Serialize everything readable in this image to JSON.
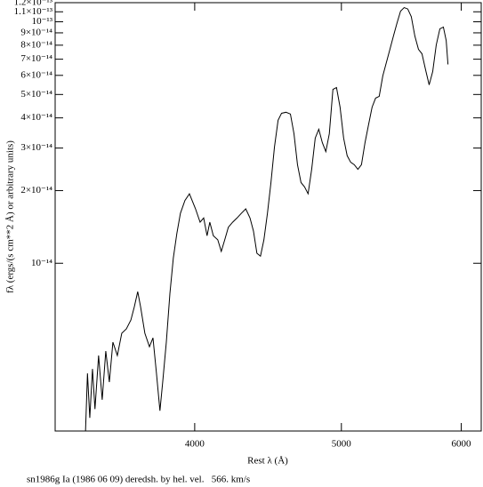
{
  "chart_data": {
    "type": "line",
    "x_label": "Rest λ (Å)",
    "y_label": "fλ (ergs/(s cm**2 Å) or arbitrary units)",
    "caption": "sn1986g Ia (1986 06 09) deredsh. by hel. vel.   566. km/s",
    "log_x": true,
    "log_y": true,
    "color": "#000000",
    "xlim": [
      3235,
      6185
    ],
    "xticks": [
      4000,
      5000,
      6000
    ],
    "ylim": [
      2.02e-15,
      1.2e-13
    ],
    "yticks": [
      {
        "value": 1e-14,
        "label": "10⁻¹⁴"
      },
      {
        "value": 2e-14,
        "label": "2×10⁻¹⁴"
      },
      {
        "value": 3e-14,
        "label": "3×10⁻¹⁴"
      },
      {
        "value": 4e-14,
        "label": "4×10⁻¹⁴"
      },
      {
        "value": 5e-14,
        "label": "5×10⁻¹⁴"
      },
      {
        "value": 6e-14,
        "label": "6×10⁻¹⁴"
      },
      {
        "value": 7e-14,
        "label": "7×10⁻¹⁴"
      },
      {
        "value": 8e-14,
        "label": "8×10⁻¹⁴"
      },
      {
        "value": 9e-14,
        "label": "9×10⁻¹⁴"
      },
      {
        "value": 1e-13,
        "label": "10⁻¹³"
      },
      {
        "value": 1.1e-13,
        "label": "1.1×10⁻¹³"
      },
      {
        "value": 1.2e-13,
        "label": "1.2×10⁻¹³"
      }
    ],
    "x": [
      3388,
      3398,
      3410,
      3424,
      3437,
      3456,
      3475,
      3494,
      3513,
      3532,
      3556,
      3580,
      3605,
      3630,
      3649,
      3668,
      3684,
      3708,
      3734,
      3754,
      3774,
      3794,
      3810,
      3831,
      3852,
      3872,
      3893,
      3914,
      3941,
      3968,
      4005,
      4033,
      4055,
      4076,
      4093,
      4115,
      4143,
      4165,
      4187,
      4210,
      4238,
      4266,
      4294,
      4323,
      4351,
      4374,
      4397,
      4421,
      4444,
      4468,
      4492,
      4516,
      4541,
      4565,
      4596,
      4627,
      4652,
      4677,
      4702,
      4728,
      4753,
      4779,
      4805,
      4831,
      4857,
      4883,
      4909,
      4936,
      4963,
      4990,
      5017,
      5044,
      5071,
      5099,
      5127,
      5155,
      5183,
      5211,
      5239,
      5267,
      5296,
      5325,
      5354,
      5383,
      5412,
      5442,
      5471,
      5501,
      5531,
      5561,
      5591,
      5622,
      5652,
      5683,
      5714,
      5745,
      5776,
      5808,
      5839,
      5864,
      5880
    ],
    "values": [
      2.02e-15,
      3.5e-15,
      2.29e-15,
      3.65e-15,
      2.49e-15,
      4.15e-15,
      2.72e-15,
      4.33e-15,
      3.22e-15,
      4.71e-15,
      4.15e-15,
      5.13e-15,
      5.35e-15,
      5.82e-15,
      6.6e-15,
      7.63e-15,
      6.6e-15,
      5.13e-15,
      4.51e-15,
      4.91e-15,
      3.5e-15,
      2.45e-15,
      3.22e-15,
      4.71e-15,
      7.5e-15,
      1.05e-14,
      1.33e-14,
      1.61e-14,
      1.82e-14,
      1.94e-14,
      1.68e-14,
      1.48e-14,
      1.54e-14,
      1.3e-14,
      1.48e-14,
      1.3e-14,
      1.25e-14,
      1.12e-14,
      1.25e-14,
      1.41e-14,
      1.48e-14,
      1.54e-14,
      1.61e-14,
      1.68e-14,
      1.54e-14,
      1.36e-14,
      1.1e-14,
      1.07e-14,
      1.25e-14,
      1.61e-14,
      2.16e-14,
      3.03e-14,
      3.91e-14,
      4.18e-14,
      4.22e-14,
      4.15e-14,
      3.44e-14,
      2.56e-14,
      2.16e-14,
      2.07e-14,
      1.94e-14,
      2.45e-14,
      3.3e-14,
      3.59e-14,
      3.16e-14,
      2.9e-14,
      3.44e-14,
      5.25e-14,
      5.34e-14,
      4.43e-14,
      3.3e-14,
      2.79e-14,
      2.62e-14,
      2.56e-14,
      2.45e-14,
      2.56e-14,
      3.16e-14,
      3.75e-14,
      4.43e-14,
      4.83e-14,
      4.91e-14,
      5.97e-14,
      6.78e-14,
      7.69e-14,
      8.73e-14,
      9.91e-14,
      1.107e-13,
      1.145e-13,
      1.13e-13,
      1.05e-13,
      8.73e-14,
      7.69e-14,
      7.37e-14,
      6.33e-14,
      5.48e-14,
      6.22e-14,
      8.02e-14,
      9.35e-14,
      9.51e-14,
      8.37e-14,
      6.66e-14
    ]
  }
}
